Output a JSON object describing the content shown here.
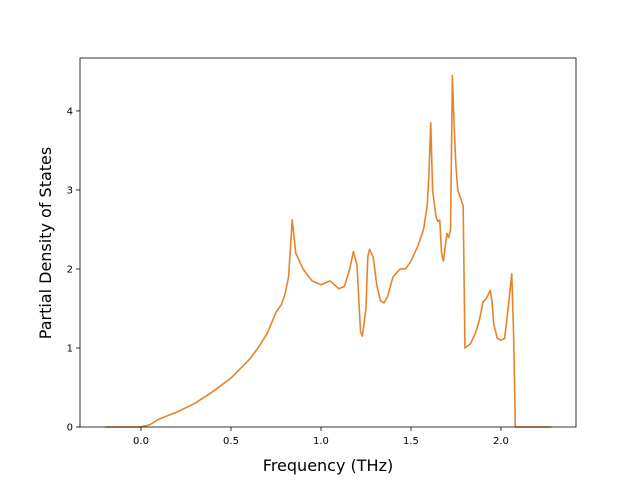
{
  "chart_data": {
    "type": "line",
    "xlabel": "Frequency (THz)",
    "ylabel": "Partial Density of States",
    "color": "#e8832a",
    "x": [
      -0.2,
      0.0,
      0.05,
      0.1,
      0.2,
      0.3,
      0.4,
      0.5,
      0.6,
      0.65,
      0.7,
      0.75,
      0.78,
      0.8,
      0.82,
      0.84,
      0.86,
      0.9,
      0.95,
      1.0,
      1.05,
      1.1,
      1.13,
      1.16,
      1.18,
      1.2,
      1.22,
      1.23,
      1.25,
      1.26,
      1.27,
      1.29,
      1.31,
      1.33,
      1.35,
      1.37,
      1.4,
      1.44,
      1.47,
      1.5,
      1.54,
      1.57,
      1.59,
      1.6,
      1.61,
      1.62,
      1.64,
      1.65,
      1.66,
      1.67,
      1.68,
      1.7,
      1.71,
      1.72,
      1.73,
      1.74,
      1.75,
      1.76,
      1.79,
      1.8,
      1.83,
      1.86,
      1.88,
      1.9,
      1.92,
      1.94,
      1.95,
      1.96,
      1.98,
      2.0,
      2.02,
      2.04,
      2.06,
      2.07,
      2.08,
      2.28
    ],
    "values": [
      0,
      0,
      0.03,
      0.1,
      0.19,
      0.3,
      0.45,
      0.62,
      0.85,
      1.0,
      1.18,
      1.45,
      1.55,
      1.68,
      1.9,
      2.62,
      2.2,
      2.0,
      1.85,
      1.8,
      1.85,
      1.75,
      1.78,
      2.0,
      2.22,
      2.05,
      1.2,
      1.15,
      1.5,
      2.15,
      2.25,
      2.15,
      1.8,
      1.6,
      1.57,
      1.65,
      1.9,
      2.0,
      2.0,
      2.1,
      2.3,
      2.5,
      2.8,
      3.2,
      3.85,
      3.0,
      2.65,
      2.6,
      2.62,
      2.2,
      2.1,
      2.45,
      2.4,
      2.5,
      4.45,
      3.8,
      3.3,
      3.0,
      2.8,
      1.0,
      1.05,
      1.2,
      1.35,
      1.58,
      1.63,
      1.73,
      1.6,
      1.3,
      1.12,
      1.1,
      1.12,
      1.5,
      1.94,
      1.2,
      0,
      0
    ],
    "xlim": [
      -0.339,
      2.417
    ],
    "ylim": [
      0,
      4.67
    ],
    "xticks": [
      {
        "value": 0,
        "label": "0.0"
      },
      0.5,
      {
        "value": 1,
        "label": "1.0"
      },
      1.5,
      {
        "value": 2,
        "label": "2.0"
      }
    ],
    "yticks": [
      0,
      1,
      2,
      3,
      4
    ]
  }
}
